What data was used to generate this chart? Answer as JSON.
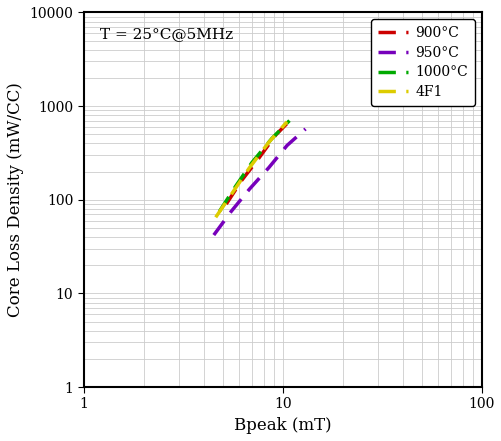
{
  "title_annotation": "T = 25°C@5MHz",
  "xlabel": "Bpeak (mT)",
  "ylabel": "Core Loss Density (mW/CC)",
  "xlim": [
    1,
    100
  ],
  "ylim": [
    1,
    10000
  ],
  "background_color": "#ffffff",
  "grid_color": "#cccccc",
  "series": [
    {
      "label": "900°C",
      "color": "#cc0000",
      "x": [
        5.2,
        6.2,
        7.5,
        9.2,
        11.2
      ],
      "y": [
        90,
        160,
        270,
        490,
        750
      ],
      "linewidth": 2.5
    },
    {
      "label": "950°C",
      "color": "#7700bb",
      "x": [
        4.5,
        5.5,
        6.8,
        8.5,
        10.5,
        13.0
      ],
      "y": [
        42,
        75,
        130,
        220,
        380,
        570
      ],
      "linewidth": 2.5
    },
    {
      "label": "1000°C",
      "color": "#00aa00",
      "x": [
        4.8,
        5.8,
        7.0,
        8.8,
        10.8
      ],
      "y": [
        75,
        140,
        250,
        450,
        700
      ],
      "linewidth": 2.5
    },
    {
      "label": "4F1",
      "color": "#ddcc00",
      "x": [
        4.6,
        5.6,
        6.8,
        8.5,
        10.5
      ],
      "y": [
        65,
        120,
        220,
        410,
        680
      ],
      "linewidth": 2.5
    }
  ],
  "legend_fontsize": 10,
  "axis_fontsize": 12,
  "annotation_fontsize": 11,
  "tick_fontsize": 10
}
